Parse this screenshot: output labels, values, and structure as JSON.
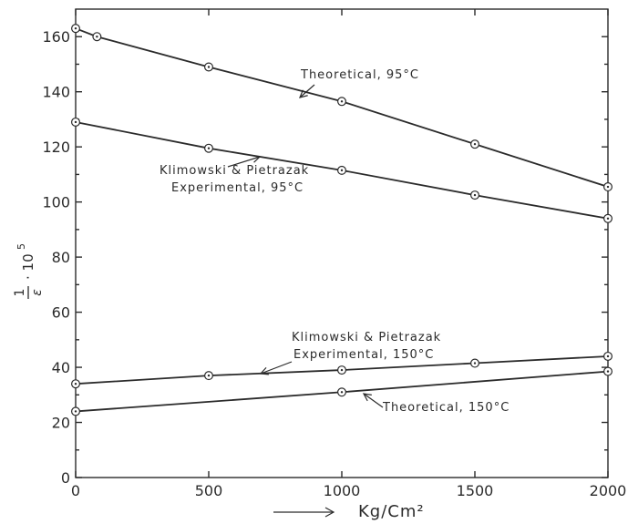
{
  "chart_data": {
    "type": "line",
    "xlabel": "Kg/Cm²",
    "ylabel_numerator": "1",
    "ylabel_denominator": "ε",
    "ylabel_suffix": "· 10",
    "ylabel_exponent": "5",
    "xlim": [
      0,
      2000
    ],
    "ylim": [
      0,
      170
    ],
    "x_ticks": [
      0,
      500,
      1000,
      1500,
      2000
    ],
    "y_ticks": [
      0,
      20,
      40,
      60,
      80,
      100,
      120,
      140,
      160
    ],
    "grid": false,
    "series": [
      {
        "x": [
          0,
          80,
          500,
          1000,
          1500,
          2000
        ],
        "y": [
          163,
          160,
          149,
          136.5,
          121,
          105.5
        ],
        "label_lines": [
          "Theoretical, 95°C"
        ]
      },
      {
        "x": [
          0,
          500,
          1000,
          1500,
          2000
        ],
        "y": [
          129,
          119.5,
          111.5,
          102.5,
          94
        ],
        "label_lines": [
          "Klimowski & Pietrazak",
          "Experimental, 95°C"
        ]
      },
      {
        "x": [
          0,
          500,
          1000,
          1500,
          2000
        ],
        "y": [
          34,
          37,
          39,
          41.5,
          44
        ],
        "label_lines": [
          "Klimowski & Pietrazak",
          "Experimental, 150°C"
        ]
      },
      {
        "x": [
          0,
          1000,
          2000
        ],
        "y": [
          24,
          31,
          38.5
        ],
        "label_lines": [
          "Theoretical, 150°C"
        ]
      }
    ]
  }
}
